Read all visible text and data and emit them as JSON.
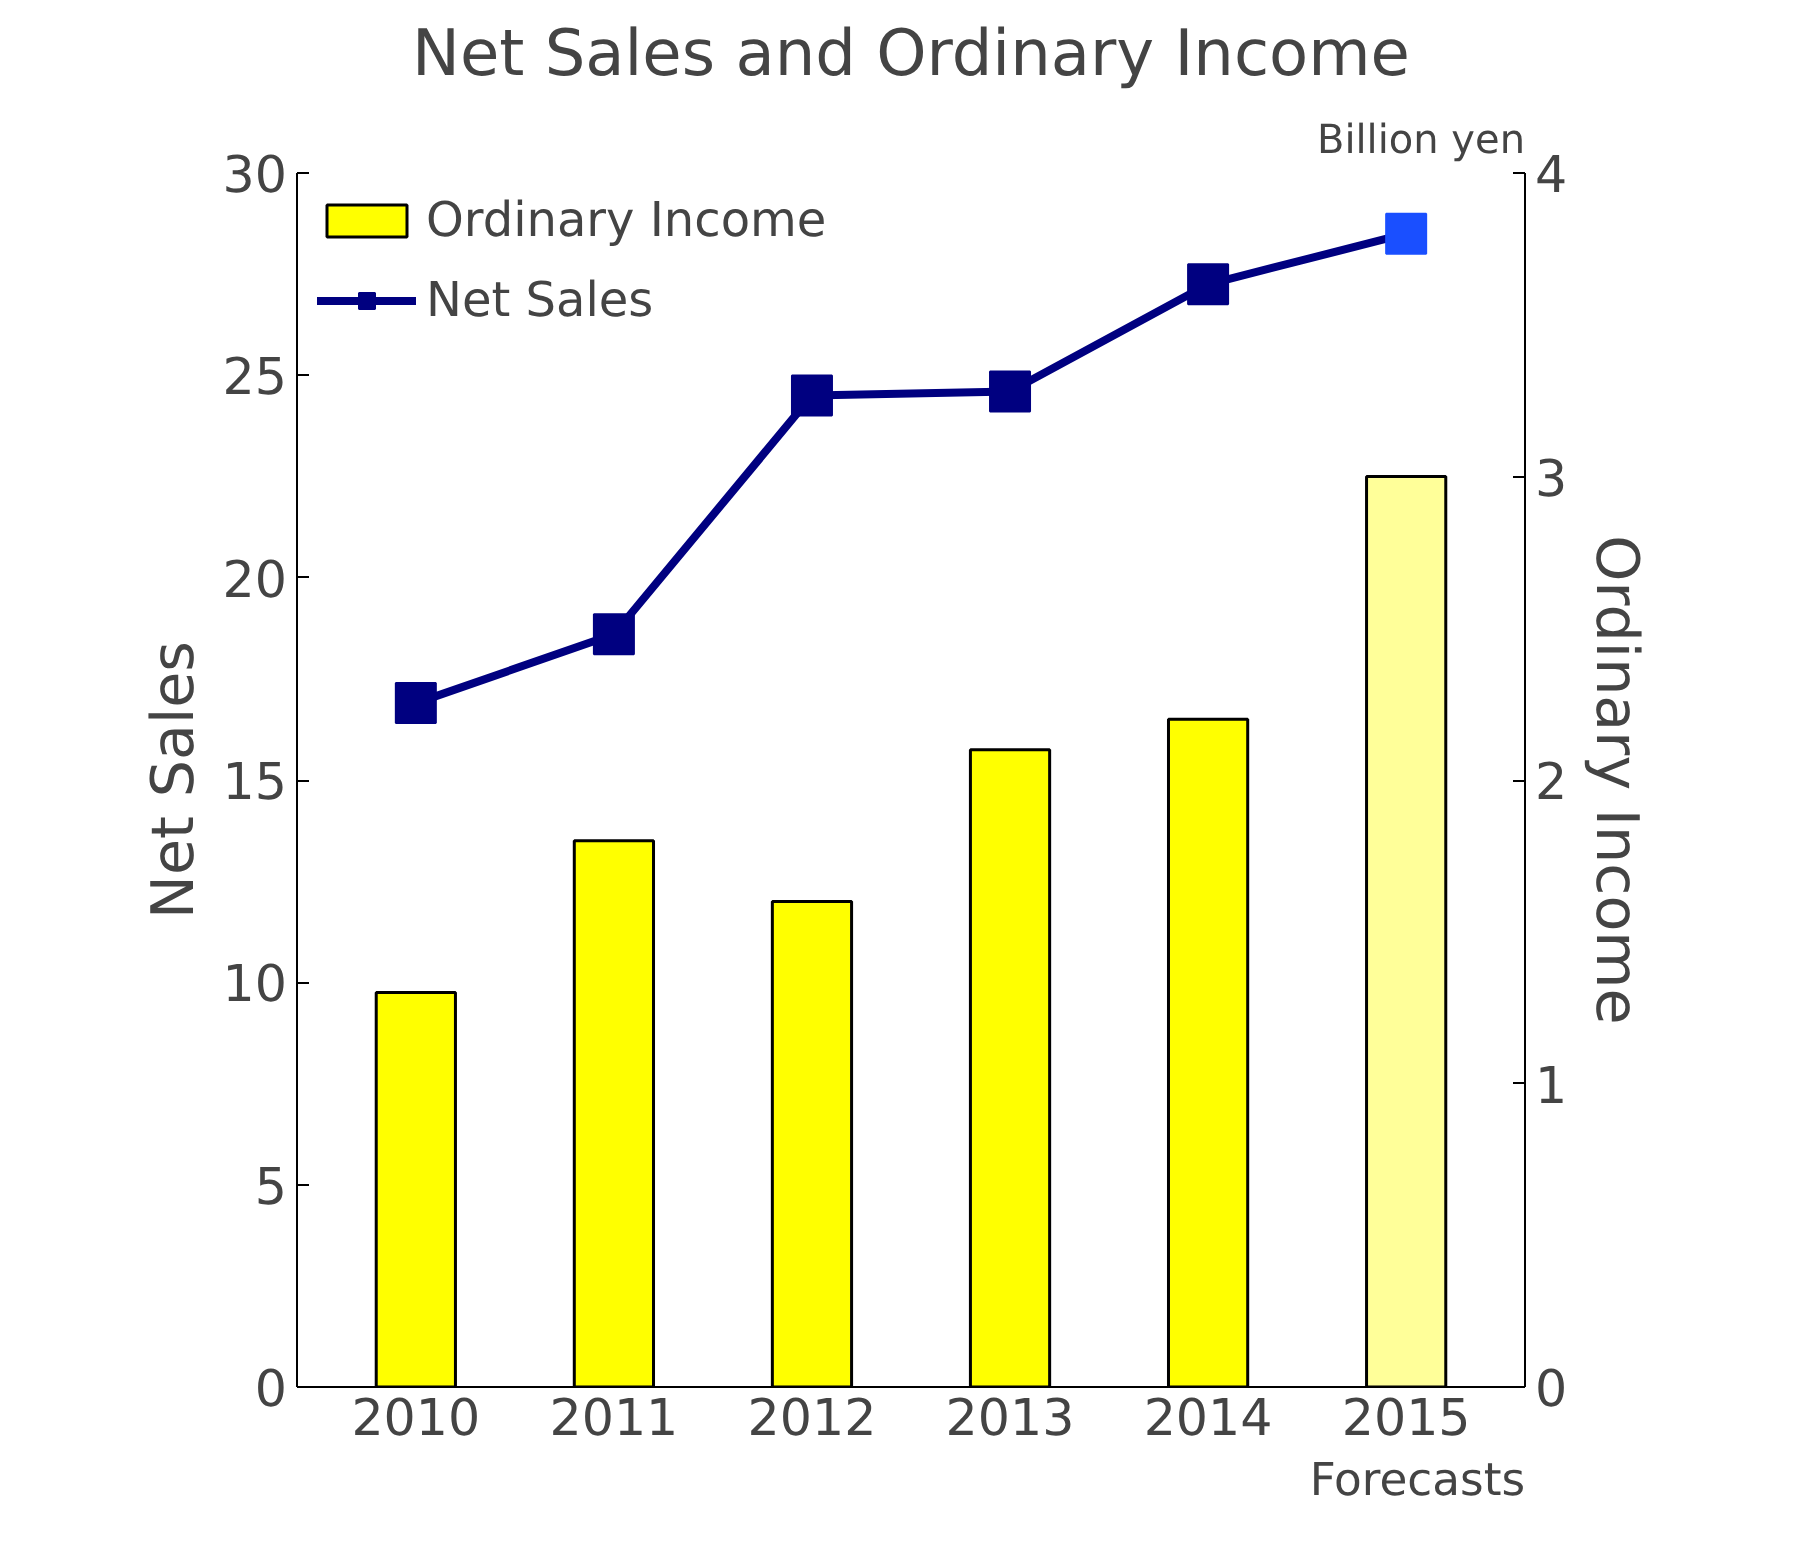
{
  "chart_data": {
    "type": "bar",
    "title": "Net Sales and Ordinary Income",
    "ylabel": "Net Sales",
    "y2label": "Ordinary Income",
    "categories": [
      "2010",
      "2011",
      "2012",
      "2013",
      "2014",
      "2015"
    ],
    "series": [
      {
        "name": "Ordinary Income",
        "axis": "y2",
        "color": "#ffff00",
        "colors": [
          "#ffff00",
          "#ffff00",
          "#ffff00",
          "#ffff00",
          "#ffff00",
          "#ffff99"
        ],
        "values": [
          1.3,
          1.8,
          1.6,
          2.1,
          2.2,
          3.0
        ]
      },
      {
        "name": "Net Sales",
        "type": "line",
        "color": "#000080",
        "colors": [
          "#000080",
          "#000080",
          "#000080",
          "#000080",
          "#000080",
          "#1a4fff"
        ],
        "values": [
          16.9,
          18.6,
          24.5,
          24.6,
          27.25,
          28.5
        ]
      }
    ],
    "ylim": [
      0,
      30
    ],
    "yticks": [
      0,
      5,
      10,
      15,
      20,
      25,
      30
    ],
    "y2lim": [
      0,
      4
    ],
    "y2ticks": [
      0,
      1,
      2,
      3,
      4
    ],
    "annotations": [
      "Billion yen",
      "Forecasts"
    ],
    "marker": "square",
    "legend": "top left",
    "grid": false
  }
}
